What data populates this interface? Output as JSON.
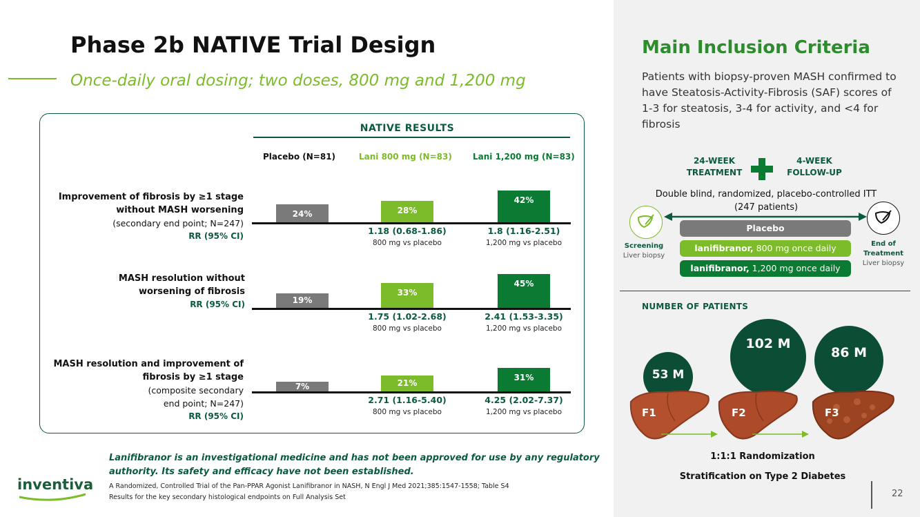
{
  "slide": {
    "title": "Phase 2b NATIVE Trial Design",
    "subtitle": "Once-daily oral dosing; two doses, 800 mg and 1,200 mg",
    "page_number": "22"
  },
  "results": {
    "title": "NATIVE RESULTS",
    "columns": [
      "Placebo (N=81)",
      "Lani 800 mg (N=83)",
      "Lani 1,200 mg (N=83)"
    ],
    "rows": [
      {
        "label_lines": [
          "Improvement of fibrosis by ≥1 stage",
          "without MASH worsening"
        ],
        "sub_lines": [
          "(secondary end point; N=247)"
        ],
        "rr_label": "RR (95% CI)",
        "values": [
          24,
          28,
          42
        ],
        "value_labels": [
          "24%",
          "28%",
          "42%"
        ],
        "ci": [
          "1.18 (0.68-1.86)",
          "1.8 (1.16-2.51)"
        ],
        "ci_sub": [
          "800 mg vs placebo",
          "1,200 mg vs placebo"
        ]
      },
      {
        "label_lines": [
          "MASH resolution without",
          "worsening of fibrosis"
        ],
        "sub_lines": [],
        "rr_label": "RR (95% CI)",
        "values": [
          19,
          33,
          45
        ],
        "value_labels": [
          "19%",
          "33%",
          "45%"
        ],
        "ci": [
          "1.75 (1.02-2.68)",
          "2.41 (1.53-3.35)"
        ],
        "ci_sub": [
          "800 mg vs placebo",
          "1,200 mg vs placebo"
        ]
      },
      {
        "label_lines": [
          "MASH resolution and improvement of",
          "fibrosis by ≥1 stage"
        ],
        "sub_lines": [
          "(composite secondary",
          "end point; N=247)"
        ],
        "rr_label": "RR (95% CI)",
        "values": [
          7,
          21,
          31
        ],
        "value_labels": [
          "7%",
          "21%",
          "31%"
        ],
        "ci": [
          "2.71 (1.16-5.40)",
          "4.25 (2.02-7.37)"
        ],
        "ci_sub": [
          "800 mg vs placebo",
          "1,200 mg vs placebo"
        ]
      }
    ]
  },
  "footer": {
    "disclaimer": "Lanifibranor is an investigational medicine and has not been approved for use by any regulatory authority. Its safety and efficacy have not been established.",
    "ref_line1": "A Randomized, Controlled Trial of the Pan-PPAR Agonist Lanifibranor in NASH, N Engl J Med 2021;385:1547-1558; Table S4",
    "ref_line2": "Results for the key secondary histological endpoints on Full Analysis Set",
    "logo_text": "inventiva"
  },
  "inclusion": {
    "title": "Main Inclusion Criteria",
    "text": "Patients with biopsy-proven MASH confirmed to have Steatosis-Activity-Fibrosis (SAF) scores of 1-3 for steatosis, 3-4 for activity, and <4 for fibrosis"
  },
  "design": {
    "treatment_line1": "24-WEEK",
    "treatment_line2": "TREATMENT",
    "followup_line1": "4-WEEK",
    "followup_line2": "FOLLOW-UP",
    "db_line1": "Double blind, randomized, placebo-controlled ITT",
    "db_line2": "(247 patients)",
    "screening_bold": "Screening",
    "screening_sub": "Liver biopsy",
    "end_bold_1": "End of",
    "end_bold_2": "Treatment",
    "end_sub": "Liver biopsy",
    "arm_placebo": "Placebo",
    "arm_800_bold": "lanifibranor,",
    "arm_800_rest": " 800 mg once daily",
    "arm_1200_bold": "lanifibranor,",
    "arm_1200_rest": " 1,200 mg once daily"
  },
  "patients": {
    "title": "NUMBER OF PATIENTS",
    "bubbles": [
      {
        "stage": "F1",
        "count": "53 M"
      },
      {
        "stage": "F2",
        "count": "102 M"
      },
      {
        "stage": "F3",
        "count": "86 M"
      }
    ],
    "randomization": "1:1:1 Randomization",
    "stratification": "Stratification on Type 2 Diabetes"
  },
  "colors": {
    "dark_green": "#0b5a3f",
    "lime": "#7cbb29",
    "bar_dark": "#0b7a33",
    "placebo_gray": "#7a7a7a"
  }
}
